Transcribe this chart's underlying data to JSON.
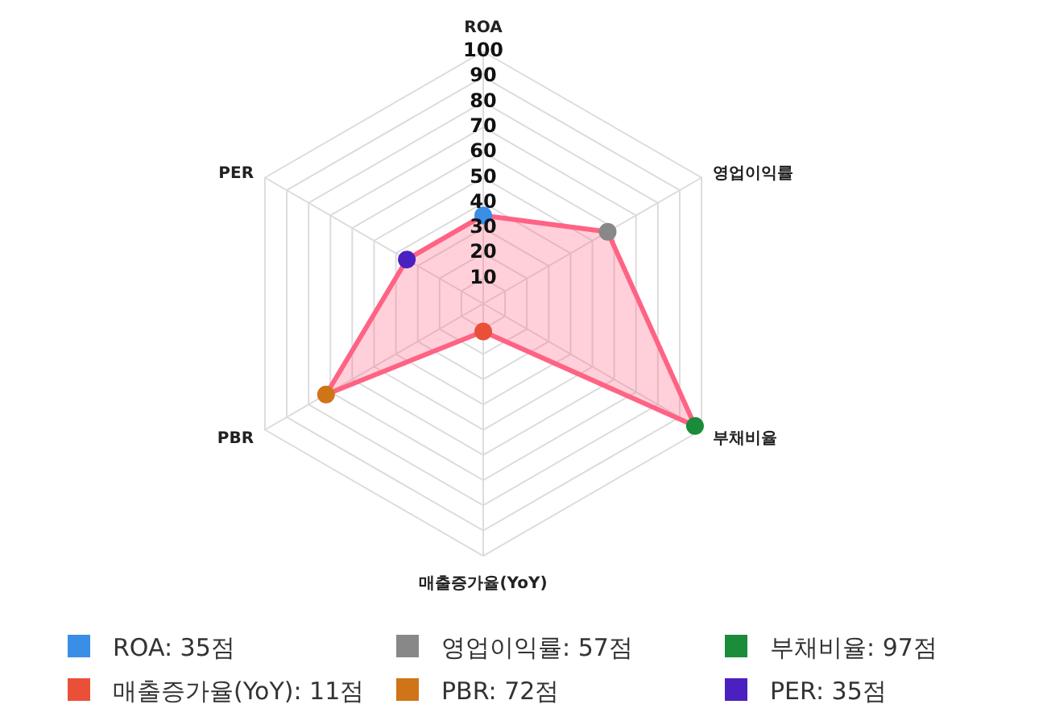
{
  "chart_data": {
    "type": "radar",
    "categories": [
      "ROA",
      "영업이익률",
      "부채비율",
      "매출증가율(YoY)",
      "PBR",
      "PER"
    ],
    "series": [
      {
        "color": "#ff6384",
        "values": [
          35,
          57,
          97,
          11,
          72,
          35
        ],
        "colors": [
          "#3a8ee6",
          "#888888",
          "#1a8c3a",
          "#ea5038",
          "#cf7417",
          "#4b1fc0"
        ]
      }
    ],
    "annotations": [
      "ROA: 35점",
      "영업이익률: 57점",
      "부채비율: 97점",
      "매출증가율(YoY): 11점",
      "PBR: 72점",
      "PER: 35점"
    ],
    "ylim": [
      0,
      100
    ],
    "yticks": [
      10,
      20,
      30,
      40,
      50,
      60,
      70,
      80,
      90,
      100
    ],
    "grid": true,
    "marker": "circle",
    "line_style": "solid"
  }
}
